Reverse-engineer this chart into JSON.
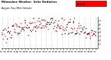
{
  "title": "Milwaukee Weather  Solar Radiation",
  "subtitle": "Avg per Day W/m²/minute",
  "background_color": "#ffffff",
  "plot_bg_color": "#ffffff",
  "legend_box_color": "#ff0000",
  "ylim": [
    0,
    8
  ],
  "ytick_labels": [
    "1",
    "2",
    "3",
    "4",
    "5",
    "6",
    "7"
  ],
  "yticks": [
    1,
    2,
    3,
    4,
    5,
    6,
    7
  ],
  "grid_color": "#bbbbbb",
  "red_color": "#ff0000",
  "black_color": "#000000",
  "num_points": 90,
  "num_vlines": 18,
  "seed": 42
}
